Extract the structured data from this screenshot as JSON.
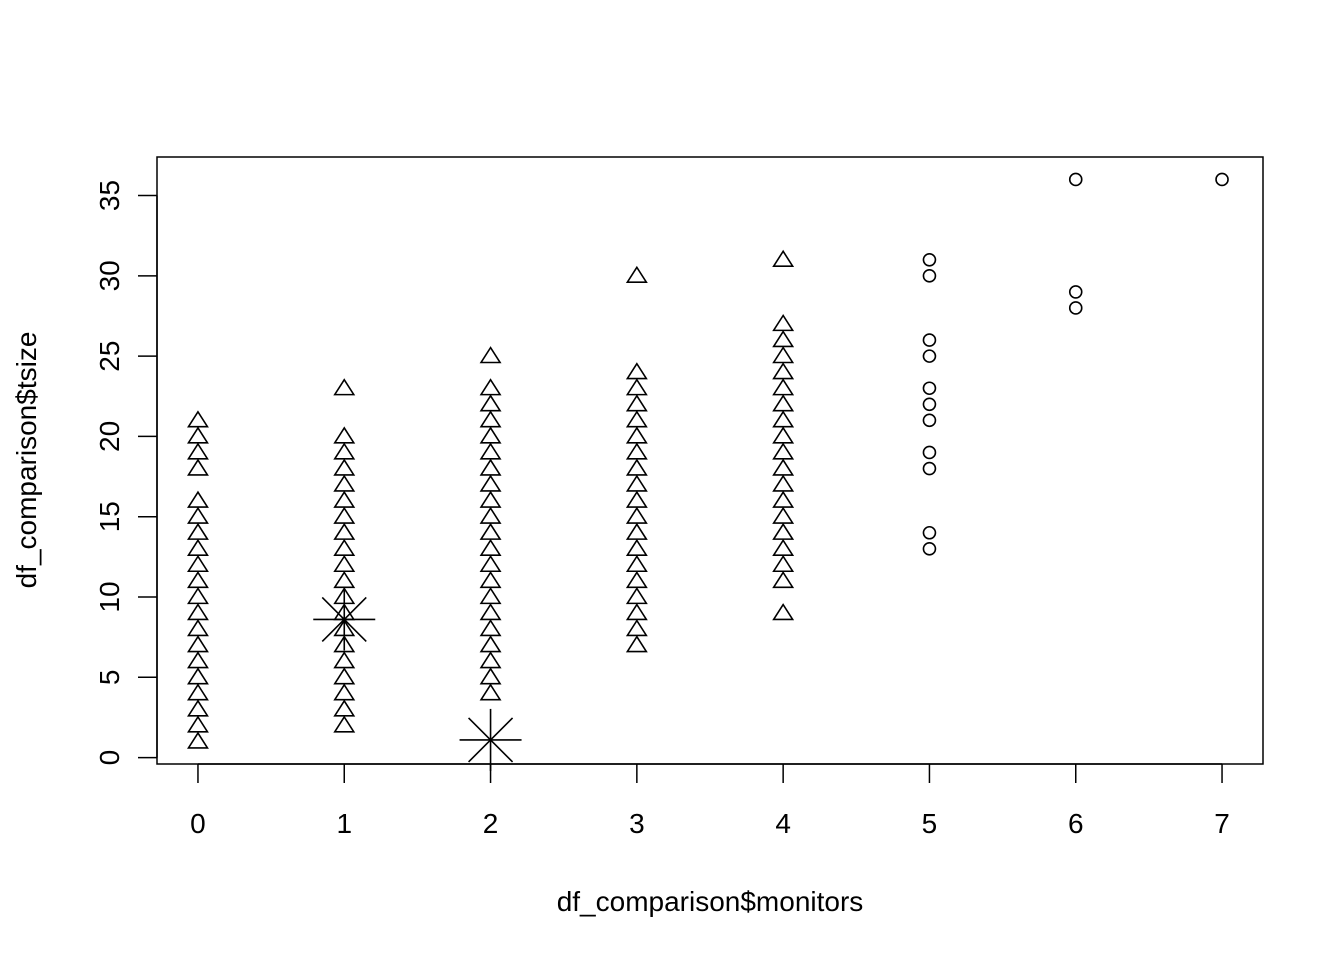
{
  "chart_data": {
    "type": "scatter",
    "title": "",
    "xlabel": "df_comparison$monitors",
    "ylabel": "df_comparison$tsize",
    "xlim": [
      -0.28,
      7.28
    ],
    "ylim": [
      -0.4,
      37.4
    ],
    "x_ticks": [
      0,
      1,
      2,
      3,
      4,
      5,
      6,
      7
    ],
    "y_ticks": [
      0,
      5,
      10,
      15,
      20,
      25,
      30,
      35
    ],
    "grid": false,
    "legend": "none",
    "series": [
      {
        "marker": "triangle",
        "color": "#000000",
        "points": [
          [
            0,
            1
          ],
          [
            0,
            2
          ],
          [
            0,
            3
          ],
          [
            0,
            4
          ],
          [
            0,
            5
          ],
          [
            0,
            6
          ],
          [
            0,
            7
          ],
          [
            0,
            8
          ],
          [
            0,
            9
          ],
          [
            0,
            10
          ],
          [
            0,
            11
          ],
          [
            0,
            12
          ],
          [
            0,
            13
          ],
          [
            0,
            14
          ],
          [
            0,
            15
          ],
          [
            0,
            16
          ],
          [
            0,
            18
          ],
          [
            0,
            19
          ],
          [
            0,
            20
          ],
          [
            0,
            21
          ],
          [
            1,
            2
          ],
          [
            1,
            3
          ],
          [
            1,
            4
          ],
          [
            1,
            5
          ],
          [
            1,
            6
          ],
          [
            1,
            7
          ],
          [
            1,
            8
          ],
          [
            1,
            9
          ],
          [
            1,
            10
          ],
          [
            1,
            11
          ],
          [
            1,
            12
          ],
          [
            1,
            13
          ],
          [
            1,
            14
          ],
          [
            1,
            15
          ],
          [
            1,
            16
          ],
          [
            1,
            17
          ],
          [
            1,
            18
          ],
          [
            1,
            19
          ],
          [
            1,
            20
          ],
          [
            1,
            23
          ],
          [
            2,
            4
          ],
          [
            2,
            5
          ],
          [
            2,
            6
          ],
          [
            2,
            7
          ],
          [
            2,
            8
          ],
          [
            2,
            9
          ],
          [
            2,
            10
          ],
          [
            2,
            11
          ],
          [
            2,
            12
          ],
          [
            2,
            13
          ],
          [
            2,
            14
          ],
          [
            2,
            15
          ],
          [
            2,
            16
          ],
          [
            2,
            17
          ],
          [
            2,
            18
          ],
          [
            2,
            19
          ],
          [
            2,
            20
          ],
          [
            2,
            21
          ],
          [
            2,
            22
          ],
          [
            2,
            23
          ],
          [
            2,
            25
          ],
          [
            3,
            7
          ],
          [
            3,
            8
          ],
          [
            3,
            9
          ],
          [
            3,
            10
          ],
          [
            3,
            11
          ],
          [
            3,
            12
          ],
          [
            3,
            13
          ],
          [
            3,
            14
          ],
          [
            3,
            15
          ],
          [
            3,
            16
          ],
          [
            3,
            17
          ],
          [
            3,
            18
          ],
          [
            3,
            19
          ],
          [
            3,
            20
          ],
          [
            3,
            21
          ],
          [
            3,
            22
          ],
          [
            3,
            23
          ],
          [
            3,
            24
          ],
          [
            3,
            30
          ],
          [
            4,
            9
          ],
          [
            4,
            11
          ],
          [
            4,
            12
          ],
          [
            4,
            13
          ],
          [
            4,
            14
          ],
          [
            4,
            15
          ],
          [
            4,
            16
          ],
          [
            4,
            17
          ],
          [
            4,
            18
          ],
          [
            4,
            19
          ],
          [
            4,
            20
          ],
          [
            4,
            21
          ],
          [
            4,
            22
          ],
          [
            4,
            23
          ],
          [
            4,
            24
          ],
          [
            4,
            25
          ],
          [
            4,
            26
          ],
          [
            4,
            27
          ],
          [
            4,
            31
          ]
        ]
      },
      {
        "marker": "circle",
        "color": "#000000",
        "points": [
          [
            5,
            13
          ],
          [
            5,
            14
          ],
          [
            5,
            18
          ],
          [
            5,
            19
          ],
          [
            5,
            21
          ],
          [
            5,
            22
          ],
          [
            5,
            23
          ],
          [
            5,
            25
          ],
          [
            5,
            26
          ],
          [
            5,
            30
          ],
          [
            5,
            31
          ],
          [
            6,
            28
          ],
          [
            6,
            29
          ],
          [
            6,
            36
          ],
          [
            7,
            36
          ]
        ]
      },
      {
        "marker": "asterisk",
        "color": "#000000",
        "points": [
          [
            1,
            8.6
          ],
          [
            2,
            1.1
          ]
        ]
      }
    ]
  }
}
